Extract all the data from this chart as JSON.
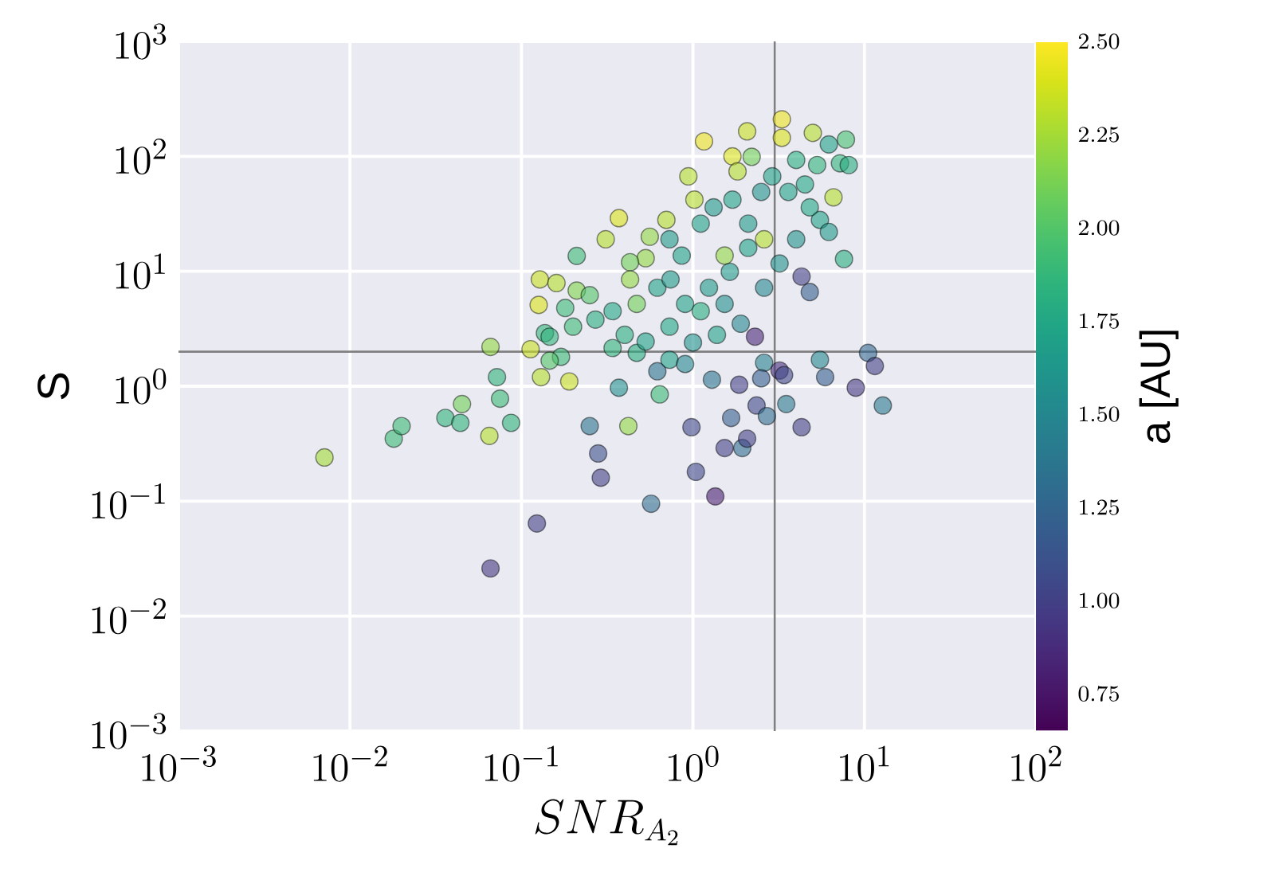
{
  "chart_data": {
    "type": "scatter",
    "xlabel": "SNR_{A_2}",
    "ylabel": "S",
    "clabel": "a [AU]",
    "log": "xy",
    "grid": true,
    "marker": "circle",
    "color": "#000000",
    "xlim": [
      0.001,
      100
    ],
    "ylim": [
      0.001,
      1000
    ],
    "xticks": [
      {
        "value": 0.001,
        "label": "10^{-3}"
      },
      {
        "value": 0.01,
        "label": "10^{-2}"
      },
      {
        "value": 0.1,
        "label": "10^{-1}"
      },
      {
        "value": 1,
        "label": "10^{0}"
      },
      {
        "value": 10,
        "label": "10^{1}"
      },
      {
        "value": 100,
        "label": "10^{2}"
      }
    ],
    "yticks": [
      {
        "value": 0.001,
        "label": "10^{-3}"
      },
      {
        "value": 0.01,
        "label": "10^{-2}"
      },
      {
        "value": 0.1,
        "label": "10^{-1}"
      },
      {
        "value": 1,
        "label": "10^{0}"
      },
      {
        "value": 10,
        "label": "10^{1}"
      },
      {
        "value": 100,
        "label": "10^{2}"
      },
      {
        "value": 1000,
        "label": "10^{3}"
      }
    ],
    "clim": [
      0.65,
      2.5
    ],
    "cticks": [
      {
        "value": 0.75,
        "label": "0.75"
      },
      {
        "value": 1,
        "label": "1.00"
      },
      {
        "value": 1.25,
        "label": "1.25"
      },
      {
        "value": 1.5,
        "label": "1.50"
      },
      {
        "value": 1.75,
        "label": "1.75"
      },
      {
        "value": 2,
        "label": "2.00"
      },
      {
        "value": 2.25,
        "label": "2.25"
      },
      {
        "value": 2.5,
        "label": "2.50"
      }
    ],
    "ref_lines": [
      {
        "axis": "x",
        "value": 3,
        "color": "#808080"
      },
      {
        "axis": "y",
        "value": 2,
        "color": "#808080"
      }
    ],
    "x": [
      0.0071,
      0.018,
      0.02,
      0.036,
      0.044,
      0.045,
      0.066,
      0.065,
      0.066,
      0.072,
      0.075,
      0.087,
      0.123,
      0.13,
      0.19,
      0.17,
      0.25,
      0.29,
      0.28,
      0.42,
      0.57,
      0.64,
      0.62,
      0.98,
      1.04,
      1.35,
      1.53,
      1.94,
      2.07,
      1.67,
      2.35,
      2.7,
      3.5,
      4.3,
      5.5,
      5.9,
      8.9,
      10.5,
      11.5,
      12.8,
      2.6,
      1.29,
      1.86,
      3.2,
      2.3,
      4.3,
      4.8,
      7.6,
      7.8,
      5.0,
      3.3,
      3.3,
      2.07,
      1.16,
      7.2,
      8.1,
      6.6,
      5.5,
      1.7,
      1.82,
      0.94,
      1.02,
      0.56,
      0.37,
      0.31,
      0.53,
      0.43,
      0.21,
      0.128,
      0.16,
      0.126,
      0.21,
      0.18,
      0.27,
      0.2,
      0.137,
      0.146,
      0.113,
      0.146,
      0.34,
      0.4,
      0.47,
      0.53,
      0.47,
      0.62,
      0.74,
      0.86,
      0.73,
      1.11,
      1.32,
      1.7,
      2.1,
      2.5,
      2.9,
      3.6,
      4.5,
      4.0,
      5.3,
      4.8,
      2.1,
      1.64,
      1.24,
      0.9,
      1.11,
      1.53,
      2.6,
      3.2,
      4.0,
      6.2,
      0.73,
      1.38,
      1.9,
      1.0,
      0.73,
      0.9,
      1.53,
      2.6,
      0.7,
      0.43,
      0.25,
      0.34,
      2.2,
      6.2,
      2.5,
      3.4,
      0.37
    ],
    "values": [
      0.24,
      0.35,
      0.45,
      0.53,
      0.48,
      0.7,
      2.2,
      0.37,
      0.026,
      1.2,
      0.78,
      0.48,
      0.064,
      1.2,
      1.1,
      1.8,
      0.45,
      0.16,
      0.26,
      0.45,
      0.095,
      0.85,
      1.35,
      0.44,
      0.18,
      0.11,
      0.29,
      0.29,
      0.35,
      0.53,
      0.68,
      0.55,
      0.7,
      0.44,
      1.7,
      1.2,
      0.97,
      1.95,
      1.5,
      0.68,
      1.6,
      1.14,
      1.03,
      1.37,
      2.7,
      9.0,
      6.6,
      12.8,
      140,
      160,
      210,
      145,
      165,
      135,
      87,
      84,
      44,
      28,
      100,
      74,
      67,
      42,
      20,
      29,
      19,
      13,
      12,
      13.6,
      8.5,
      7.9,
      5.1,
      6.8,
      4.8,
      3.8,
      3.3,
      2.9,
      2.7,
      2.1,
      1.67,
      2.15,
      2.8,
      1.95,
      2.45,
      5.2,
      7.2,
      8.5,
      13.7,
      19,
      26,
      36,
      42,
      26,
      49,
      67,
      49,
      57,
      93,
      84,
      36,
      16,
      9.9,
      7.2,
      5.2,
      4.5,
      5.2,
      7.2,
      11.7,
      19,
      22,
      3.3,
      2.8,
      3.5,
      2.4,
      1.7,
      1.56,
      13.7,
      19,
      28,
      8.5,
      6.2,
      4.5,
      99,
      127,
      1.17,
      1.25,
      0.97
    ],
    "cvalues": [
      2.25,
      1.9,
      1.9,
      1.85,
      1.85,
      2.1,
      2.2,
      2.3,
      0.95,
      1.85,
      1.9,
      1.85,
      1.0,
      2.3,
      2.35,
      1.9,
      1.35,
      1.0,
      1.1,
      2.2,
      1.3,
      1.9,
      1.35,
      1.05,
      1.05,
      0.8,
      1.0,
      1.3,
      1.0,
      1.2,
      1.05,
      1.3,
      1.4,
      1.0,
      1.5,
      1.2,
      0.95,
      1.25,
      1.0,
      1.4,
      1.45,
      1.35,
      1.0,
      0.9,
      0.85,
      1.0,
      1.2,
      1.8,
      1.95,
      2.3,
      2.45,
      2.4,
      2.35,
      2.45,
      1.85,
      1.8,
      2.3,
      1.7,
      2.4,
      2.3,
      2.3,
      2.3,
      2.2,
      2.4,
      2.3,
      2.2,
      2.1,
      1.9,
      2.35,
      2.3,
      2.4,
      2.15,
      1.9,
      1.8,
      1.9,
      1.85,
      1.85,
      2.35,
      2.0,
      1.85,
      1.8,
      1.8,
      1.7,
      2.1,
      1.7,
      1.65,
      1.7,
      1.65,
      1.7,
      1.65,
      1.7,
      1.65,
      1.6,
      1.7,
      1.7,
      1.75,
      1.8,
      1.85,
      1.75,
      1.7,
      1.65,
      1.65,
      1.7,
      1.8,
      1.55,
      1.5,
      1.6,
      1.6,
      1.65,
      1.75,
      1.7,
      1.5,
      1.6,
      1.7,
      1.5,
      2.2,
      2.3,
      2.3,
      2.2,
      2.0,
      1.75,
      2.1,
      1.7,
      1.2,
      1.05,
      1.55
    ]
  }
}
